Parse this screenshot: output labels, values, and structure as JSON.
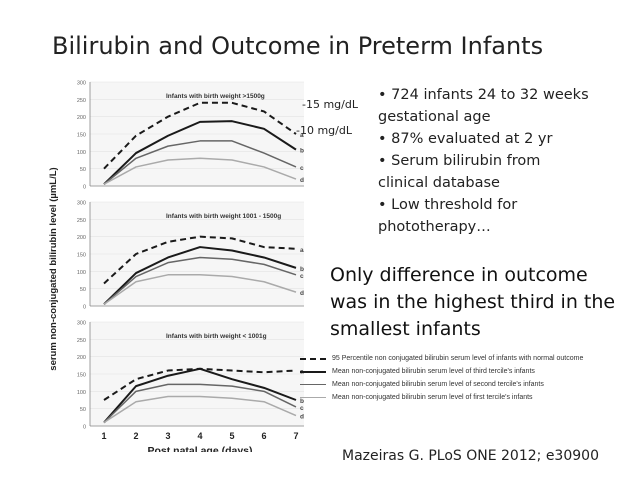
{
  "slide": {
    "title": "Bilirubin and Outcome in Preterm Infants",
    "annotations": {
      "upper": "-15 mg/dL",
      "lower": "-10 mg/dL"
    },
    "bullets": [
      "• 724 infants 24 to 32 weeks",
      "gestational age",
      "• 87% evaluated at 2 yr",
      "• Serum bilirubin from",
      "clinical database",
      "• Low threshold for",
      "phototherapy…"
    ],
    "highlight": [
      "Only difference in outcome",
      "was in the highest third in the",
      "smallest infants"
    ],
    "citation": "Mazeiras G. PLoS ONE 2012; e30900"
  },
  "chart_data": {
    "type": "line",
    "ylabel": "serum non-conjugated bilirubin level (µmL/L)",
    "xlabel": "Post natal age (days)",
    "x": [
      1,
      2,
      3,
      4,
      5,
      6,
      7
    ],
    "x_ticks": [
      "1",
      "2",
      "3",
      "4",
      "5",
      "6",
      "7"
    ],
    "ylim": [
      0,
      300
    ],
    "y_ticks": [
      "0",
      "50",
      "100",
      "150",
      "200",
      "250",
      "300"
    ],
    "colors": {
      "a": "#1a1a1a",
      "b": "#1a1a1a",
      "c": "#666666",
      "d": "#aaaaaa"
    },
    "panels": [
      {
        "subtitle": "Infants with birth weight >1500g",
        "series": [
          {
            "name": "a",
            "style": "dashed",
            "values": [
              50,
              145,
              200,
              240,
              240,
              215,
              150
            ]
          },
          {
            "name": "b",
            "style": "solid-thick",
            "values": [
              5,
              95,
              145,
              185,
              187,
              165,
              105
            ]
          },
          {
            "name": "c",
            "style": "solid",
            "values": [
              5,
              80,
              115,
              130,
              130,
              95,
              55
            ]
          },
          {
            "name": "d",
            "style": "solid-light",
            "values": [
              5,
              55,
              75,
              80,
              75,
              55,
              20
            ]
          }
        ]
      },
      {
        "subtitle": "Infants with birth weight 1001 - 1500g",
        "series": [
          {
            "name": "a",
            "style": "dashed",
            "values": [
              65,
              150,
              185,
              200,
              195,
              170,
              165
            ]
          },
          {
            "name": "b",
            "style": "solid-thick",
            "values": [
              5,
              95,
              140,
              170,
              160,
              140,
              110
            ]
          },
          {
            "name": "c",
            "style": "solid",
            "values": [
              5,
              85,
              125,
              140,
              135,
              120,
              90
            ]
          },
          {
            "name": "d",
            "style": "solid-light",
            "values": [
              5,
              70,
              90,
              90,
              85,
              70,
              40
            ]
          }
        ]
      },
      {
        "subtitle": "Infants with birth weight < 1001g",
        "series": [
          {
            "name": "a",
            "style": "dashed",
            "values": [
              75,
              135,
              160,
              165,
              160,
              155,
              160
            ]
          },
          {
            "name": "b",
            "style": "solid-thick",
            "values": [
              10,
              115,
              145,
              165,
              135,
              110,
              75
            ]
          },
          {
            "name": "c",
            "style": "solid",
            "values": [
              10,
              100,
              120,
              120,
              115,
              100,
              55
            ]
          },
          {
            "name": "d",
            "style": "solid-light",
            "values": [
              10,
              70,
              85,
              85,
              80,
              70,
              30
            ]
          }
        ]
      }
    ],
    "legend": [
      {
        "key": "a",
        "style": "dashed",
        "label": "95 Percentile non conjugated bilirubin serum level of infants with normal outcome"
      },
      {
        "key": "b",
        "style": "solid-thick",
        "label": "Mean non-conjugated bilirubin serum level of third tercile's infants"
      },
      {
        "key": "c",
        "style": "solid",
        "label": "Mean non-conjugated bilirubin serum level of second tercile's infants"
      },
      {
        "key": "d",
        "style": "solid-light",
        "label": "Mean non-conjugated bilirubin serum level of first tercile's infants"
      }
    ]
  }
}
